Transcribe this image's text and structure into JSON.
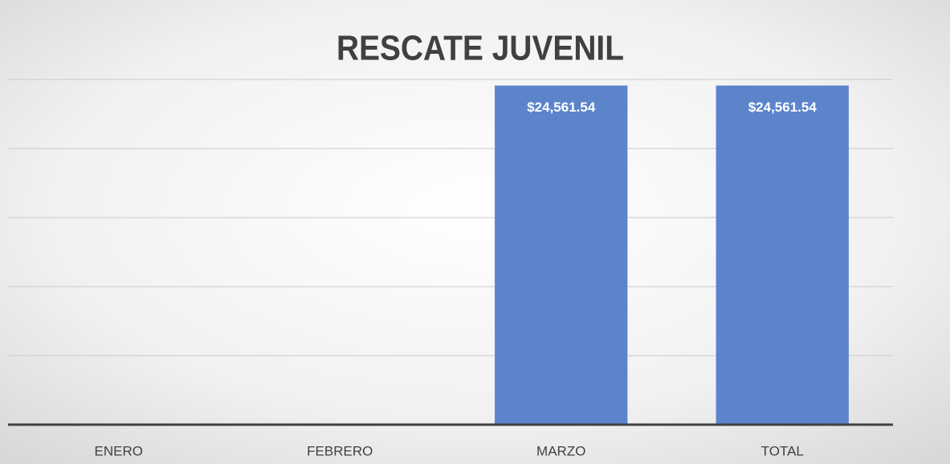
{
  "chart_data": {
    "type": "bar",
    "title": "RESCATE JUVENIL",
    "categories": [
      "ENERO",
      "FEBRERO",
      "MARZO",
      "TOTAL"
    ],
    "values": [
      0,
      0,
      24561.54,
      24561.54
    ],
    "value_labels": [
      null,
      null,
      "$24,561.54",
      "$24,561.54"
    ],
    "color": "#5b84cb",
    "ylim": [
      0,
      25000
    ],
    "yticks": [
      0,
      5000,
      10000,
      15000,
      20000,
      25000
    ],
    "grid": true
  }
}
